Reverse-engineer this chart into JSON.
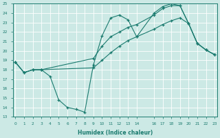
{
  "xlabel": "Humidex (Indice chaleur)",
  "bg_color": "#cce9e5",
  "grid_color": "#ffffff",
  "line_color": "#1a7a6e",
  "xlim": [
    -0.3,
    23.3
  ],
  "ylim": [
    13,
    25
  ],
  "xticks": [
    0,
    1,
    2,
    3,
    4,
    5,
    6,
    7,
    8,
    9,
    10,
    11,
    12,
    13,
    14,
    16,
    17,
    18,
    19,
    20,
    21,
    22,
    23
  ],
  "xtick_labels": [
    "0",
    "1",
    "2",
    "3",
    "4",
    "5",
    "6",
    "7",
    "8",
    "9",
    "10",
    "11",
    "12",
    "13",
    "14",
    "16",
    "17",
    "18",
    "19",
    "20",
    "21",
    "22",
    "23"
  ],
  "yticks": [
    13,
    14,
    15,
    16,
    17,
    18,
    19,
    20,
    21,
    22,
    23,
    24,
    25
  ],
  "ytick_labels": [
    "13",
    "14",
    "15",
    "16",
    "17",
    "18",
    "19",
    "20",
    "21",
    "22",
    "23",
    "24",
    "25"
  ],
  "line1_x": [
    0,
    1,
    2,
    3,
    4,
    5,
    6,
    7,
    8,
    9,
    10,
    11,
    12,
    13,
    14,
    16,
    17,
    18,
    19,
    20,
    21,
    22,
    23
  ],
  "line1_y": [
    18.8,
    17.7,
    18.0,
    18.0,
    17.3,
    14.8,
    14.0,
    13.8,
    13.5,
    18.5,
    21.6,
    23.5,
    23.8,
    23.3,
    21.5,
    24.0,
    24.7,
    25.0,
    24.8,
    22.9,
    20.8,
    20.1,
    19.6
  ],
  "line2_x": [
    0,
    1,
    2,
    3,
    9,
    10,
    11,
    12,
    13,
    14,
    16,
    17,
    18,
    19,
    20,
    21,
    22,
    23
  ],
  "line2_y": [
    18.8,
    17.7,
    18.0,
    18.0,
    19.2,
    20.5,
    21.5,
    22.0,
    22.5,
    22.8,
    23.8,
    24.5,
    24.8,
    24.8,
    22.9,
    20.8,
    20.1,
    19.6
  ],
  "line3_x": [
    0,
    1,
    2,
    3,
    9,
    10,
    11,
    12,
    13,
    14,
    16,
    17,
    18,
    19,
    20,
    21,
    22,
    23
  ],
  "line3_y": [
    18.8,
    17.7,
    18.0,
    18.0,
    18.2,
    19.0,
    19.8,
    20.5,
    21.1,
    21.5,
    22.3,
    22.8,
    23.2,
    23.5,
    22.9,
    20.8,
    20.1,
    19.6
  ]
}
